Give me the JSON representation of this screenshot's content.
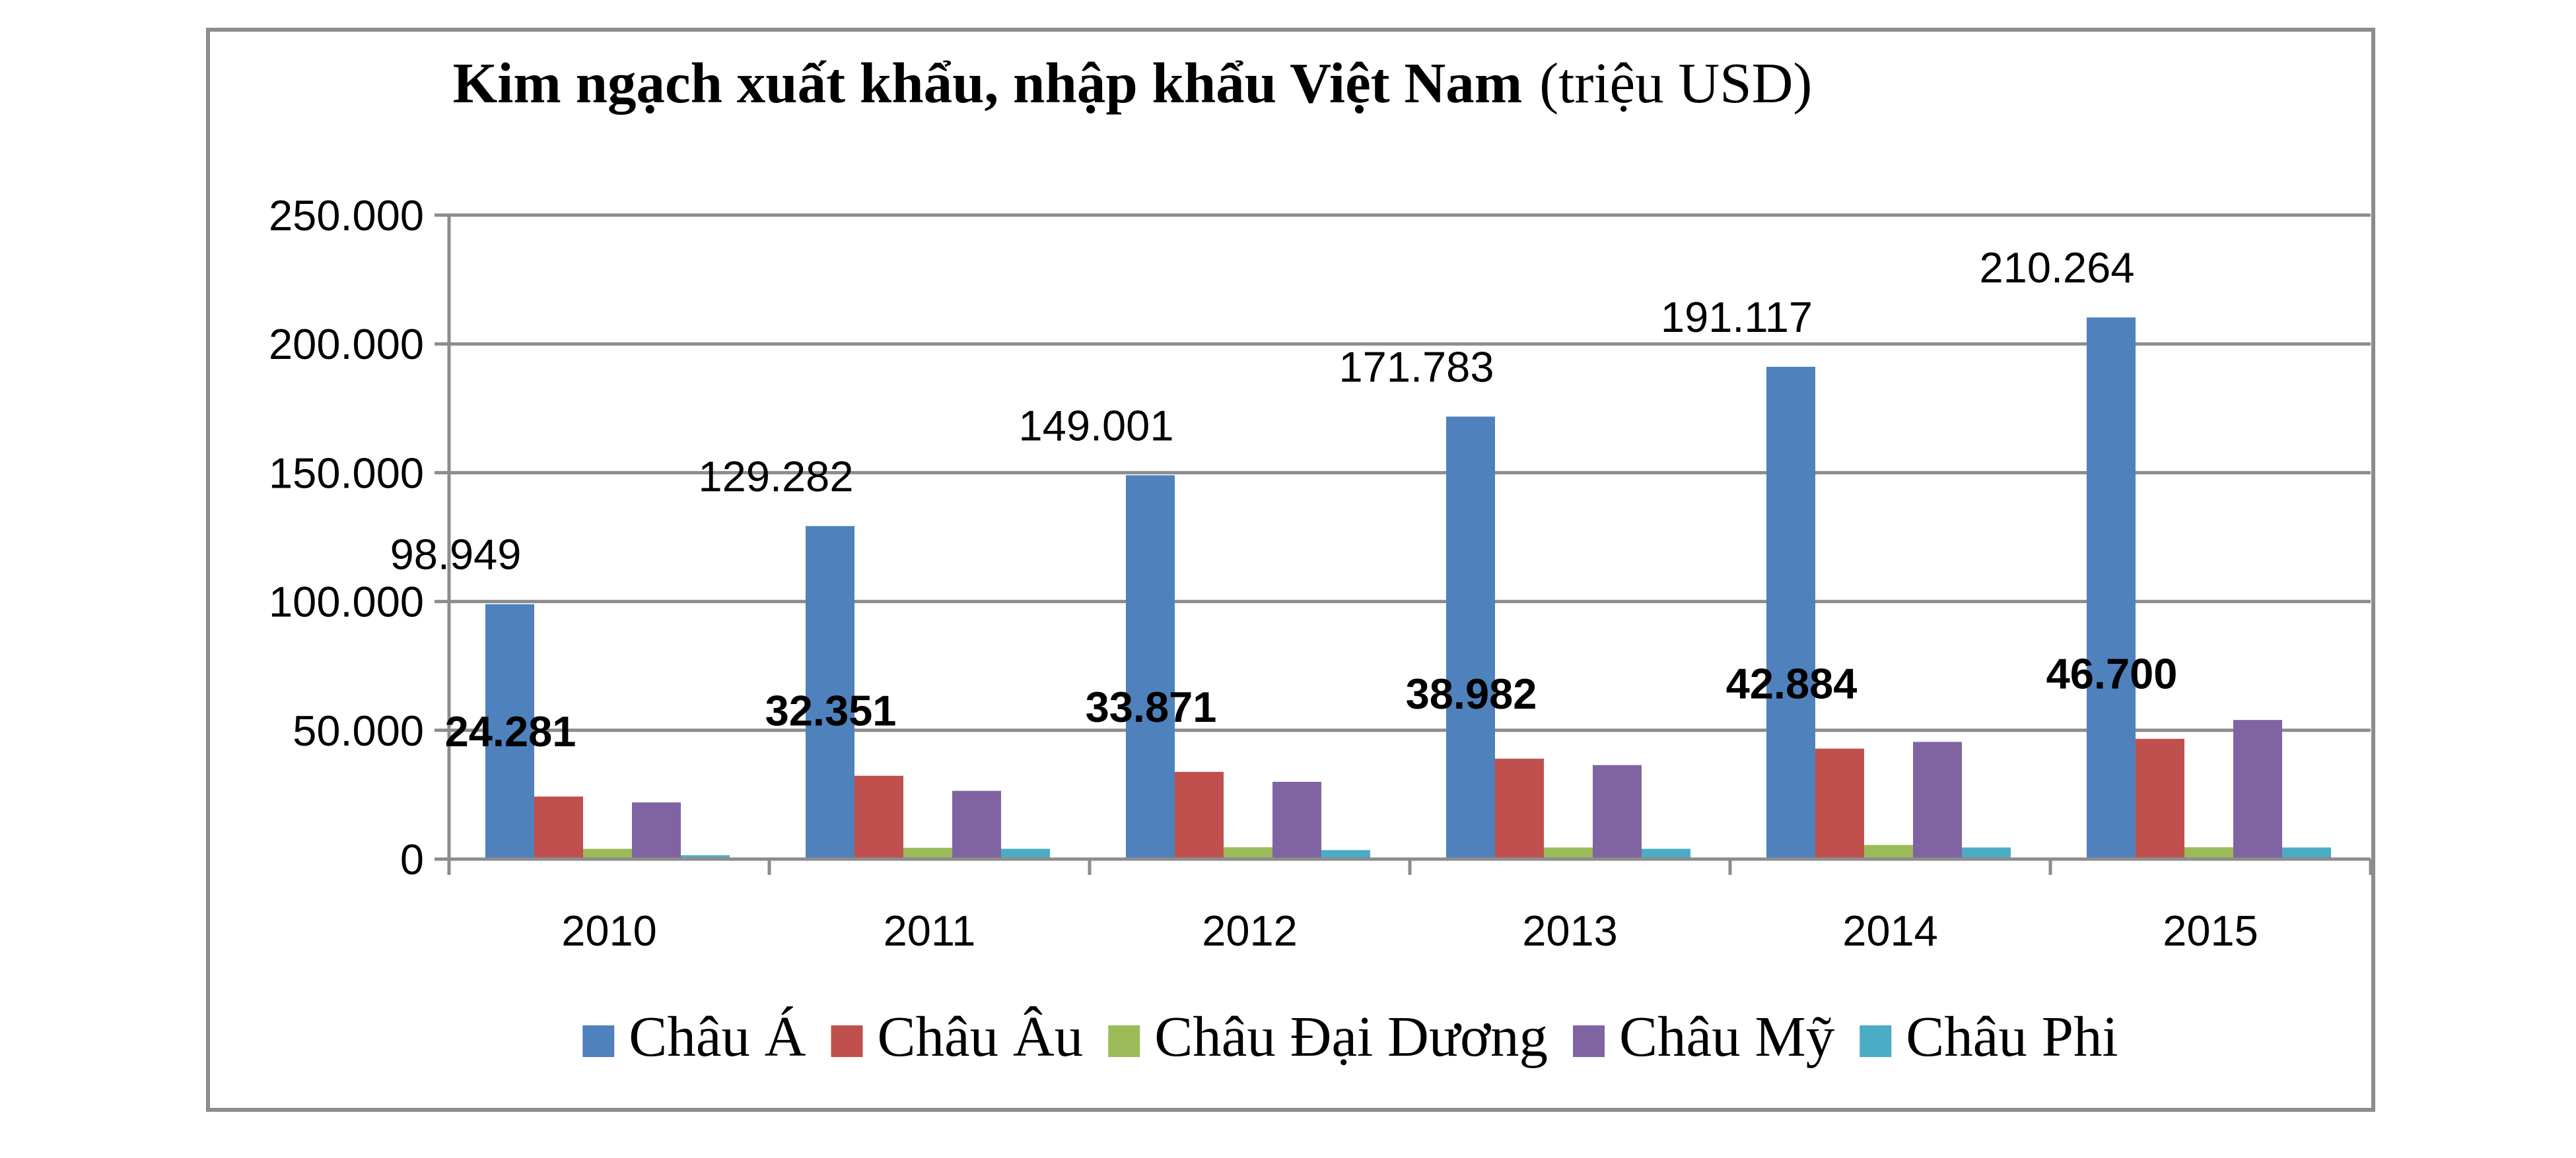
{
  "chart_data": {
    "type": "bar",
    "title": "Kim ngạch xuất khẩu, nhập khẩu Việt Nam",
    "title_unit": "(triệu USD)",
    "xlabel": "",
    "ylabel": "",
    "categories": [
      "2010",
      "2011",
      "2012",
      "2013",
      "2014",
      "2015"
    ],
    "ylim": [
      0,
      250000
    ],
    "yticks": [
      0,
      50000,
      100000,
      150000,
      200000,
      250000
    ],
    "ytick_labels": [
      "0",
      "50.000",
      "100.000",
      "150.000",
      "200.000",
      "250.000"
    ],
    "grid": true,
    "legend_position": "bottom",
    "series": [
      {
        "name": "Châu Á",
        "color": "#4F81BD",
        "values": [
          98949,
          129282,
          149001,
          171783,
          191117,
          210264
        ],
        "labels": [
          "98.949",
          "129.282",
          "149.001",
          "171.783",
          "191.117",
          "210.264"
        ],
        "label_style": "normal"
      },
      {
        "name": "Châu Âu",
        "color": "#C0504D",
        "values": [
          24281,
          32351,
          33871,
          38982,
          42884,
          46700
        ],
        "labels": [
          "24.281",
          "32.351",
          "33.871",
          "38.982",
          "42.884",
          "46.700"
        ],
        "label_style": "bold"
      },
      {
        "name": "Châu Đại Dương",
        "color": "#9BBB59",
        "values": [
          4000,
          4400,
          4600,
          4500,
          5500,
          4600
        ]
      },
      {
        "name": "Châu Mỹ",
        "color": "#8064A2",
        "values": [
          22000,
          26500,
          30000,
          36500,
          45500,
          54000
        ]
      },
      {
        "name": "Châu Phi",
        "color": "#4BACC6",
        "values": [
          1500,
          4000,
          3500,
          4000,
          4500,
          4500
        ]
      }
    ]
  }
}
